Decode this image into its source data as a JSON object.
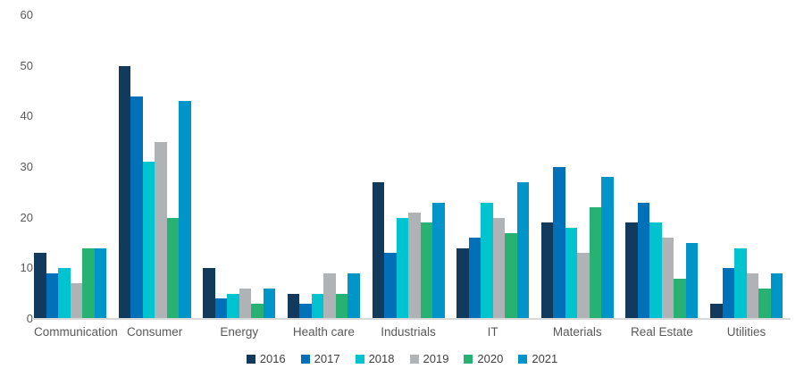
{
  "chart_data": {
    "type": "bar",
    "title": "",
    "xlabel": "",
    "ylabel": "",
    "grid": false,
    "legend_position": "bottom",
    "background": "#ffffff",
    "axis_label_color": "#595959",
    "baseline_color": "#d9d9d9",
    "categories": [
      "Communication",
      "Consumer",
      "Energy",
      "Health care",
      "Industrials",
      "IT",
      "Materials",
      "Real Estate",
      "Utilities"
    ],
    "y_axis": {
      "min": 0,
      "max": 60,
      "step": 10,
      "ticks": [
        0,
        10,
        20,
        30,
        40,
        50,
        60
      ]
    },
    "series": [
      {
        "name": "2016",
        "color": "#113a5d",
        "values": [
          13,
          50,
          10,
          5,
          27,
          14,
          19,
          19,
          3
        ]
      },
      {
        "name": "2017",
        "color": "#0070b9",
        "values": [
          9,
          44,
          4,
          3,
          13,
          16,
          30,
          23,
          10
        ]
      },
      {
        "name": "2018",
        "color": "#00c3d0",
        "values": [
          10,
          31,
          5,
          5,
          20,
          23,
          18,
          19,
          14
        ]
      },
      {
        "name": "2019",
        "color": "#afb3b5",
        "values": [
          7,
          35,
          6,
          9,
          21,
          20,
          13,
          16,
          9
        ]
      },
      {
        "name": "2020",
        "color": "#27b173",
        "values": [
          14,
          20,
          3,
          5,
          19,
          17,
          22,
          8,
          6
        ]
      },
      {
        "name": "2021",
        "color": "#0095c8",
        "values": [
          14,
          43,
          6,
          9,
          23,
          27,
          28,
          15,
          9
        ]
      }
    ]
  }
}
